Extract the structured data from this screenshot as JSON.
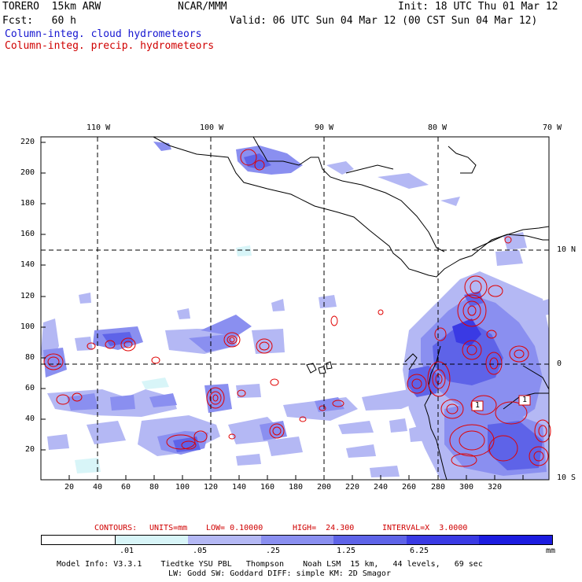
{
  "header": {
    "model": "TORERO  15km ARW",
    "center": "NCAR/MMM",
    "init": "Init: 18 UTC Thu 01 Mar 12",
    "fcst": "Fcst:   60 h",
    "valid": "Valid: 06 UTC Sun 04 Mar 12 (00 CST Sun 04 Mar 12)",
    "line_cloud": "Column-integ. cloud hydrometeors",
    "line_precip": "Column-integ. precip. hydrometeors"
  },
  "map": {
    "lon_labels": [
      "110 W",
      "100 W",
      "90 W",
      "80 W",
      "70 W"
    ],
    "lat_labels": [
      "10 N",
      "0",
      "10 S"
    ],
    "x_ticks": [
      "20",
      "40",
      "60",
      "80",
      "100",
      "120",
      "140",
      "160",
      "180",
      "200",
      "220",
      "240",
      "260",
      "280",
      "300",
      "320"
    ],
    "y_ticks": [
      "220",
      "200",
      "180",
      "160",
      "140",
      "120",
      "100",
      "80",
      "60",
      "40",
      "20"
    ],
    "box_labels": [
      "1",
      "1"
    ]
  },
  "contours_line": {
    "contours": "CONTOURS:",
    "units": "UNITS=mm",
    "low": "LOW= 0.10000",
    "high": "HIGH=  24.300",
    "interval": "INTERVAL=X  3.0000"
  },
  "legend": {
    "colors": [
      "#ffffff",
      "#d8f5f8",
      "#b4b8f4",
      "#8a8ff0",
      "#5e63e8",
      "#3a3ae4",
      "#1c1ce0"
    ],
    "labels": [
      ".01",
      ".05",
      ".25",
      "1.25",
      "6.25"
    ],
    "units": "mm"
  },
  "footer": {
    "line1": "Model Info: V3.3.1    Tiedtke YSU PBL   Thompson    Noah LSM  15 km,   44 levels,   69 sec",
    "line2": "LW: Godd SW: Goddard DIFF: simple KM: 2D Smagor"
  }
}
